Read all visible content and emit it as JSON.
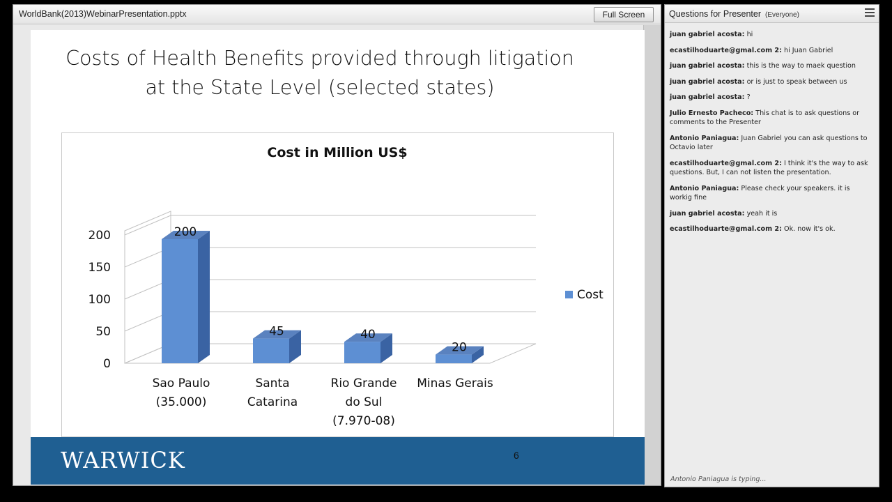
{
  "presentation": {
    "file_name": "WorldBank(2013)WebinarPresentation.pptx",
    "fullscreen_label": "Full Screen",
    "slide": {
      "title_line1": "Costs of Health Benefits provided through litigation",
      "title_line2": "at the State Level (selected states)",
      "logo_text": "WARWICK",
      "slide_number": "6"
    }
  },
  "chart_data": {
    "type": "bar",
    "title": "Cost in Million US$",
    "categories": [
      [
        "Sao Paulo",
        "(35.000)"
      ],
      [
        "Santa",
        "Catarina"
      ],
      [
        "Rio Grande",
        "do Sul",
        "(7.970-08)"
      ],
      [
        "Minas Gerais"
      ]
    ],
    "series": [
      {
        "name": "Cost",
        "values": [
          200,
          45,
          40,
          20
        ]
      }
    ],
    "y_ticks": [
      "0",
      "50",
      "100",
      "150",
      "200"
    ],
    "ylim": [
      0,
      200
    ],
    "legend_position": "right",
    "grid": true,
    "colors": {
      "bar_front": "#5d8fd3",
      "bar_top": "#5a82bf",
      "bar_side": "#3a63a3"
    }
  },
  "chat": {
    "title": "Questions for Presenter",
    "scope": "(Everyone)",
    "messages": [
      {
        "sender": "juan gabriel acosta:",
        "text": "hi"
      },
      {
        "sender": "ecastilhoduarte@gmal.com 2:",
        "text": "hi Juan Gabriel"
      },
      {
        "sender": "juan gabriel acosta:",
        "text": "this is the way to maek question"
      },
      {
        "sender": "juan gabriel acosta:",
        "text": "or is just to speak between us"
      },
      {
        "sender": "juan gabriel acosta:",
        "text": "?"
      },
      {
        "sender": "Julio Ernesto Pacheco:",
        "text": "This chat is to ask questions or comments to the Presenter"
      },
      {
        "sender": "Antonio Paniagua:",
        "text": "Juan Gabriel you can ask questions to Octavio later"
      },
      {
        "sender": "ecastilhoduarte@gmal.com 2:",
        "text": "I think it's the way to ask questions. But, I can not listen the presentation."
      },
      {
        "sender": "Antonio Paniagua:",
        "text": "Please check your speakers. it is workig fine"
      },
      {
        "sender": "juan gabriel acosta:",
        "text": "yeah it is"
      },
      {
        "sender": "ecastilhoduarte@gmal.com 2:",
        "text": "Ok. now it's ok."
      }
    ],
    "typing_status": "Antonio Paniagua is typing..."
  }
}
